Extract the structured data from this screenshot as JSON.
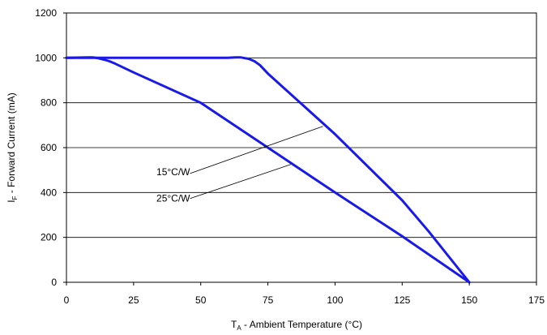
{
  "chart_data": {
    "type": "line",
    "title": "",
    "xlabel": {
      "main": "T",
      "sub": "A",
      "rest": " - Ambient Temperature (°C)"
    },
    "ylabel": {
      "main": "I",
      "sub": "F",
      "rest": " - Forward Current (mA)"
    },
    "xlim": [
      0,
      175
    ],
    "ylim": [
      0,
      1200
    ],
    "xticks": [
      0,
      25,
      50,
      75,
      100,
      125,
      150,
      175
    ],
    "yticks": [
      0,
      200,
      400,
      600,
      800,
      1000,
      1200
    ],
    "grid": {
      "horizontal": true,
      "vertical": false
    },
    "colors": {
      "series": "#1a1ae6",
      "grid": "#000000"
    },
    "series": [
      {
        "name": "15°C/W",
        "x": [
          0,
          10,
          20,
          30,
          40,
          50,
          60,
          63,
          65,
          68,
          70,
          72,
          75,
          100,
          125,
          135,
          150
        ],
        "y": [
          1000,
          1000,
          1000,
          1000,
          1000,
          1000,
          1000,
          1002,
          1002,
          995,
          985,
          968,
          930,
          660,
          365,
          225,
          0
        ]
      },
      {
        "name": "25°C/W",
        "x": [
          0,
          8,
          10,
          12,
          14,
          16,
          18,
          25,
          50,
          75,
          100,
          125,
          150
        ],
        "y": [
          1000,
          1002,
          1002,
          998,
          992,
          985,
          975,
          935,
          800,
          600,
          400,
          205,
          0
        ]
      }
    ],
    "annotations": [
      {
        "text": "15°C/W",
        "label_at": [
          33.5,
          478
        ],
        "leader_from": [
          46,
          485
        ],
        "leader_to": [
          95.5,
          695
        ]
      },
      {
        "text": "25°C/W",
        "label_at": [
          33.5,
          360
        ],
        "leader_from": [
          46,
          373
        ],
        "leader_to": [
          83.5,
          525
        ]
      }
    ]
  }
}
